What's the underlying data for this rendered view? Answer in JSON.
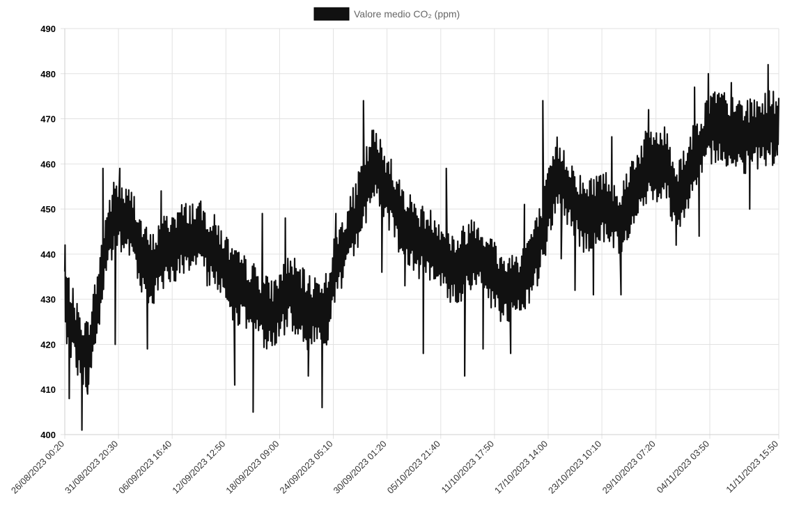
{
  "chart_data": {
    "type": "line",
    "title": "",
    "xlabel": "",
    "ylabel": "",
    "ylim": [
      400,
      490
    ],
    "yticks": [
      400,
      410,
      420,
      430,
      440,
      450,
      460,
      470,
      480,
      490
    ],
    "grid": true,
    "legend_position": "top-center",
    "x_start": "26/08/2023 00:20",
    "x_end": "11/11/2023 15:50",
    "x_tick_labels": [
      "26/08/2023 00:20",
      "31/08/2023 20:30",
      "06/09/2023 16:40",
      "12/09/2023 12:50",
      "18/09/2023 09:00",
      "24/09/2023 05:10",
      "30/09/2023 01:20",
      "05/10/2023 21:40",
      "11/10/2023 17:50",
      "17/10/2023 14:00",
      "23/10/2023 10:10",
      "29/10/2023 07:20",
      "04/11/2023 03:50",
      "11/11/2023 15:50"
    ],
    "series": [
      {
        "name": "Valore medio CO₂ (ppm)",
        "color": "#111111",
        "trend": [
          [
            "26/08/2023 00:20",
            430
          ],
          [
            "27/08/2023 12:00",
            420
          ],
          [
            "28/08/2023 12:00",
            417
          ],
          [
            "29/08/2023 12:00",
            428
          ],
          [
            "30/08/2023 12:00",
            442
          ],
          [
            "31/08/2023 12:00",
            449
          ],
          [
            "01/09/2023 12:00",
            447
          ],
          [
            "02/09/2023 12:00",
            446
          ],
          [
            "03/09/2023 12:00",
            439
          ],
          [
            "04/09/2023 12:00",
            436
          ],
          [
            "05/09/2023 12:00",
            440
          ],
          [
            "07/09/2023 12:00",
            443
          ],
          [
            "09/09/2023 12:00",
            444
          ],
          [
            "11/09/2023 12:00",
            440
          ],
          [
            "13/09/2023 12:00",
            433
          ],
          [
            "15/09/2023 12:00",
            430
          ],
          [
            "17/09/2023 12:00",
            426
          ],
          [
            "19/09/2023 12:00",
            432
          ],
          [
            "21/09/2023 12:00",
            427
          ],
          [
            "23/09/2023 12:00",
            428
          ],
          [
            "24/09/2023 12:00",
            437
          ],
          [
            "26/09/2023 12:00",
            447
          ],
          [
            "28/09/2023 12:00",
            460
          ],
          [
            "29/09/2023 12:00",
            457
          ],
          [
            "01/10/2023 12:00",
            448
          ],
          [
            "03/10/2023 12:00",
            443
          ],
          [
            "05/10/2023 12:00",
            441
          ],
          [
            "07/10/2023 12:00",
            436
          ],
          [
            "09/10/2023 12:00",
            441
          ],
          [
            "11/10/2023 12:00",
            436
          ],
          [
            "12/10/2023 12:00",
            432
          ],
          [
            "14/10/2023 12:00",
            433
          ],
          [
            "16/10/2023 12:00",
            441
          ],
          [
            "18/10/2023 12:00",
            458
          ],
          [
            "19/10/2023 12:00",
            455
          ],
          [
            "21/10/2023 12:00",
            448
          ],
          [
            "23/10/2023 12:00",
            451
          ],
          [
            "25/10/2023 12:00",
            447
          ],
          [
            "26/10/2023 12:00",
            453
          ],
          [
            "28/10/2023 12:00",
            460
          ],
          [
            "30/10/2023 12:00",
            460
          ],
          [
            "31/10/2023 12:00",
            452
          ],
          [
            "02/11/2023 12:00",
            461
          ],
          [
            "04/11/2023 12:00",
            469
          ],
          [
            "06/11/2023 12:00",
            467
          ],
          [
            "08/11/2023 12:00",
            466
          ],
          [
            "10/11/2023 12:00",
            468
          ],
          [
            "11/11/2023 15:50",
            468
          ]
        ],
        "spikes": [
          [
            "26/08/2023 01:00",
            442
          ],
          [
            "26/08/2023 12:00",
            408
          ],
          [
            "27/08/2023 21:00",
            401
          ],
          [
            "28/08/2023 12:00",
            409
          ],
          [
            "30/08/2023 04:00",
            459
          ],
          [
            "31/08/2023 12:00",
            420
          ],
          [
            "01/09/2023 00:00",
            459
          ],
          [
            "04/09/2023 00:00",
            419
          ],
          [
            "05/09/2023 12:00",
            454
          ],
          [
            "10/09/2023 12:00",
            433
          ],
          [
            "13/09/2023 12:00",
            411
          ],
          [
            "15/09/2023 12:00",
            405
          ],
          [
            "16/09/2023 12:00",
            449
          ],
          [
            "19/09/2023 00:00",
            448
          ],
          [
            "21/09/2023 12:00",
            413
          ],
          [
            "23/09/2023 00:00",
            406
          ],
          [
            "24/09/2023 12:00",
            449
          ],
          [
            "27/09/2023 12:00",
            474
          ],
          [
            "29/09/2023 12:00",
            436
          ],
          [
            "30/09/2023 12:00",
            461
          ],
          [
            "02/10/2023 00:00",
            433
          ],
          [
            "04/10/2023 00:00",
            418
          ],
          [
            "06/10/2023 12:00",
            459
          ],
          [
            "08/10/2023 12:00",
            413
          ],
          [
            "10/10/2023 12:00",
            419
          ],
          [
            "13/10/2023 12:00",
            418
          ],
          [
            "15/10/2023 00:00",
            451
          ],
          [
            "17/10/2023 00:00",
            474
          ],
          [
            "19/10/2023 00:00",
            439
          ],
          [
            "20/10/2023 12:00",
            432
          ],
          [
            "22/10/2023 12:00",
            431
          ],
          [
            "24/10/2023 12:00",
            466
          ],
          [
            "25/10/2023 12:00",
            431
          ],
          [
            "28/10/2023 12:00",
            472
          ],
          [
            "31/10/2023 12:00",
            442
          ],
          [
            "02/11/2023 12:00",
            477
          ],
          [
            "03/11/2023 00:00",
            444
          ],
          [
            "04/11/2023 00:00",
            480
          ],
          [
            "06/11/2023 12:00",
            478
          ],
          [
            "08/11/2023 12:00",
            450
          ],
          [
            "10/11/2023 12:00",
            482
          ],
          [
            "11/11/2023 12:00",
            462
          ]
        ],
        "amplitude": 7,
        "samples": 1050,
        "seed": 7
      }
    ]
  }
}
